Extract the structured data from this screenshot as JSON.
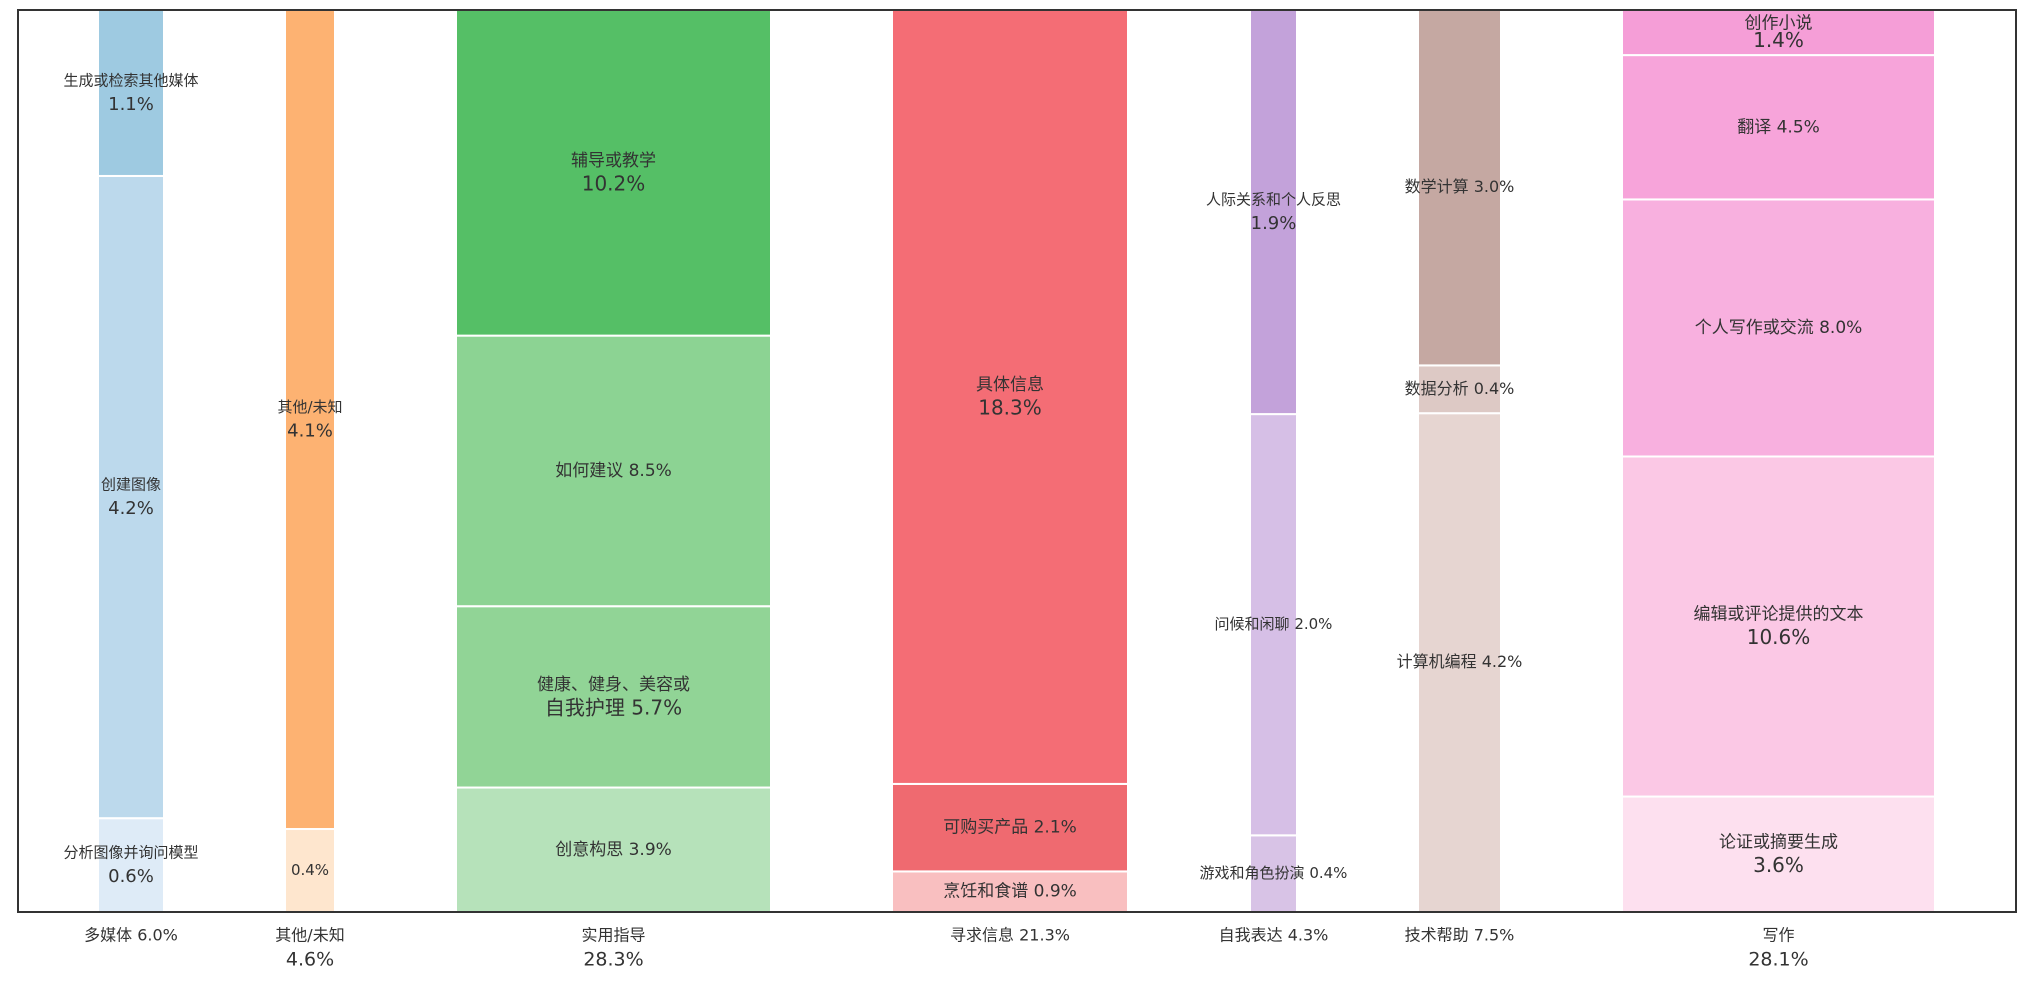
{
  "chart_data": {
    "type": "bar",
    "stacked": true,
    "variable_width": true,
    "ylim": [
      0,
      100
    ],
    "grid": false,
    "legend": "none",
    "categories": [
      {
        "name": "多媒体 6.0%",
        "label_line1": "多媒体 6.0%",
        "label_line2": "",
        "value": 6.0,
        "color": "#9ecae1",
        "segments": [
          {
            "name": "分析图像并询问模型",
            "value": 0.6,
            "height": 10.4,
            "label_line1": "分析图像并询问模型",
            "label_line2": "0.6%",
            "color": "#deebf7"
          },
          {
            "name": "创建图像",
            "value": 4.2,
            "height": 71.2,
            "label_line1": "创建图像",
            "label_line2": "4.2%",
            "color": "#bcd9ec"
          },
          {
            "name": "生成或检索其他媒体",
            "value": 1.1,
            "height": 18.4,
            "label_line1": "生成或检索其他媒体",
            "label_line2": "1.1%",
            "color": "#9ecae1"
          }
        ]
      },
      {
        "name": "其他/未知 4.6%",
        "label_line1": "其他/未知",
        "label_line2": "4.6%",
        "value": 4.6,
        "color": "#fdae6b",
        "segments": [
          {
            "name": "其他/未知 0.4%",
            "value": 0.4,
            "height": 9.2,
            "label_line1": "0.4%",
            "label_line2": "",
            "color": "#fee6ce"
          },
          {
            "name": "其他/未知 4.1%",
            "value": 4.1,
            "height": 90.8,
            "label_line1": "其他/未知",
            "label_line2": "4.1%",
            "color": "#fdb272"
          }
        ]
      },
      {
        "name": "实用指导 28.3%",
        "label_line1": "实用指导",
        "label_line2": "28.3%",
        "value": 28.3,
        "color": "#5bbf6b",
        "segments": [
          {
            "name": "创意构思",
            "value": 3.9,
            "height": 13.8,
            "label_line1": "创意构思 3.9%",
            "label_line2": "",
            "color": "#b6e2ba"
          },
          {
            "name": "健康、健身、美容或自我护理",
            "value": 5.7,
            "height": 20.1,
            "label_line1": "健康、健身、美容或",
            "label_line2": "自我护理 5.7%",
            "color": "#91d496"
          },
          {
            "name": "如何建议",
            "value": 8.5,
            "height": 30.0,
            "label_line1": "如何建议 8.5%",
            "label_line2": "",
            "color": "#8cd393"
          },
          {
            "name": "辅导或教学",
            "value": 10.2,
            "height": 36.1,
            "label_line1": "辅导或教学",
            "label_line2": "10.2%",
            "color": "#55bf66"
          }
        ]
      },
      {
        "name": "寻求信息 21.3%",
        "label_line1": "寻求信息 21.3%",
        "label_line2": "",
        "value": 21.3,
        "color": "#f46d75",
        "segments": [
          {
            "name": "烹饪和食谱",
            "value": 0.9,
            "height": 4.5,
            "label_line1": "烹饪和食谱 0.9%",
            "label_line2": "",
            "color": "#f9bfc0"
          },
          {
            "name": "可购买产品",
            "value": 2.1,
            "height": 9.7,
            "label_line1": "可购买产品 2.1%",
            "label_line2": "",
            "color": "#ef6a70"
          },
          {
            "name": "具体信息",
            "value": 18.3,
            "height": 85.8,
            "label_line1": "具体信息",
            "label_line2": "18.3%",
            "color": "#f46d75"
          }
        ]
      },
      {
        "name": "自我表达 4.3%",
        "label_line1": "自我表达 4.3%",
        "label_line2": "",
        "value": 4.3,
        "color": "#c3a2da",
        "segments": [
          {
            "name": "游戏和角色扮演",
            "value": 0.4,
            "height": 8.5,
            "label_line1": "游戏和角色扮演 0.4%",
            "label_line2": "",
            "color": "#d8c3e6"
          },
          {
            "name": "问候和闲聊",
            "value": 2.0,
            "height": 46.7,
            "label_line1": "问候和闲聊 2.0%",
            "label_line2": "",
            "color": "#d6bfe6"
          },
          {
            "name": "人际关系和个人反思",
            "value": 1.9,
            "height": 44.8,
            "label_line1": "人际关系和个人反思",
            "label_line2": "1.9%",
            "color": "#c3a2da"
          }
        ]
      },
      {
        "name": "技术帮助 7.5%",
        "label_line1": "技术帮助 7.5%",
        "label_line2": "",
        "value": 7.5,
        "color": "#c5a8a2",
        "segments": [
          {
            "name": "计算机编程",
            "value": 4.2,
            "height": 55.3,
            "label_line1": "计算机编程 4.2%",
            "label_line2": "",
            "color": "#e6d5d1"
          },
          {
            "name": "数据分析",
            "value": 0.4,
            "height": 5.3,
            "label_line1": "数据分析 0.4%",
            "label_line2": "",
            "color": "#ddc9c5"
          },
          {
            "name": "数学计算",
            "value": 3.0,
            "height": 39.4,
            "label_line1": "数学计算 3.0%",
            "label_line2": "",
            "color": "#c5a8a2"
          }
        ]
      },
      {
        "name": "写作 28.1%",
        "label_line1": "写作",
        "label_line2": "28.1%",
        "value": 28.1,
        "color": "#f59ed7",
        "segments": [
          {
            "name": "论证或摘要生成",
            "value": 3.6,
            "height": 12.8,
            "label_line1": "论证或摘要生成",
            "label_line2": "3.6%",
            "color": "#fde0ef"
          },
          {
            "name": "编辑或评论提供的文本",
            "value": 10.6,
            "height": 37.7,
            "label_line1": "编辑或评论提供的文本",
            "label_line2": "10.6%",
            "color": "#fbc8e5"
          },
          {
            "name": "个人写作或交流",
            "value": 8.0,
            "height": 28.5,
            "label_line1": "个人写作或交流 8.0%",
            "label_line2": "",
            "color": "#f8b0df"
          },
          {
            "name": "翻译",
            "value": 4.5,
            "height": 16.0,
            "label_line1": "翻译 4.5%",
            "label_line2": "",
            "color": "#f7a4da"
          },
          {
            "name": "创作小说",
            "value": 1.4,
            "height": 5.0,
            "label_line1": "创作小说",
            "label_line2": "1.4%",
            "color": "#f59ed7"
          }
        ]
      }
    ]
  }
}
